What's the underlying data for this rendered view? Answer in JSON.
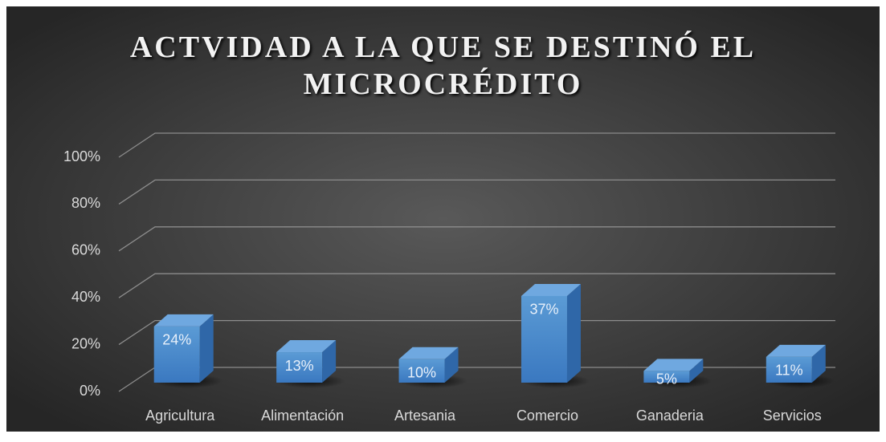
{
  "chart_data": {
    "type": "bar3d",
    "title": "ACTVIDAD A LA QUE SE DESTINÓ EL MICROCRÉDITO",
    "categories": [
      "Agricultura",
      "Alimentación",
      "Artesania",
      "Comercio",
      "Ganaderia",
      "Servicios"
    ],
    "values": [
      24,
      13,
      10,
      37,
      5,
      11
    ],
    "value_labels": [
      "24%",
      "13%",
      "10%",
      "37%",
      "5%",
      "11%"
    ],
    "color": "#4a8ad6",
    "ylim": [
      0,
      100
    ],
    "yticks": [
      {
        "value": 0,
        "label": "0%"
      },
      {
        "value": 20,
        "label": "20%"
      },
      {
        "value": 40,
        "label": "40%"
      },
      {
        "value": 60,
        "label": "60%"
      },
      {
        "value": 80,
        "label": "80%"
      },
      {
        "value": 100,
        "label": "100%"
      }
    ],
    "grid": true
  }
}
